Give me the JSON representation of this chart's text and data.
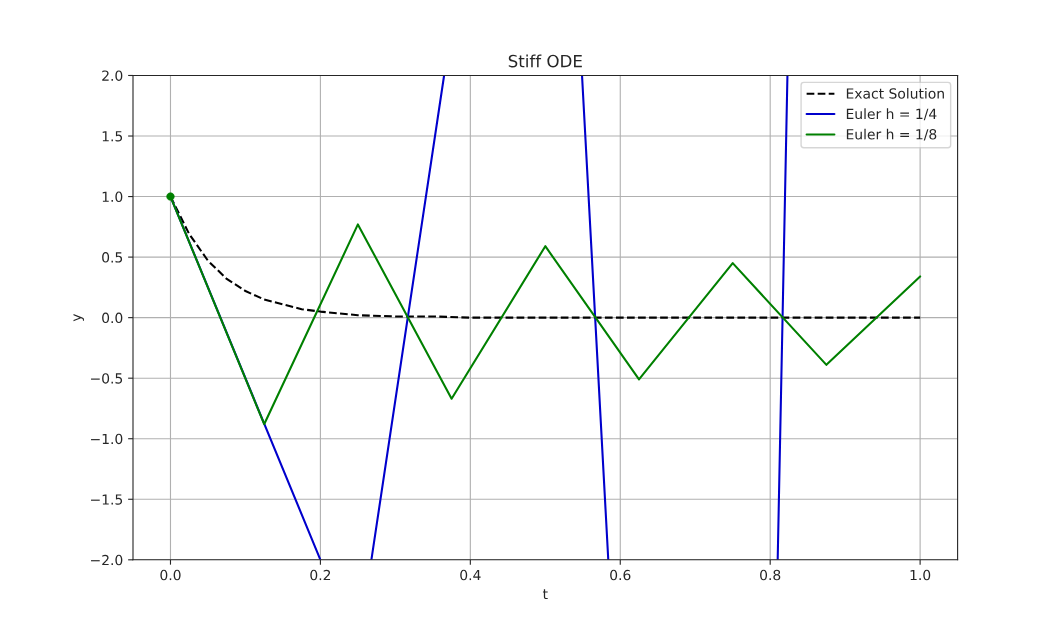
{
  "chart_data": {
    "type": "line",
    "title": "Stiff ODE",
    "xlabel": "t",
    "ylabel": "y",
    "xlim": [
      -0.05,
      1.05
    ],
    "ylim": [
      -2.0,
      2.0
    ],
    "xticks": [
      {
        "value": 0,
        "label": "0.0"
      },
      {
        "value": 0.2,
        "label": "0.2"
      },
      {
        "value": 0.4,
        "label": "0.4"
      },
      {
        "value": 0.6,
        "label": "0.6"
      },
      {
        "value": 0.8,
        "label": "0.8"
      },
      {
        "value": 1,
        "label": "1.0"
      }
    ],
    "yticks": [
      {
        "value": -2,
        "label": "−2.0"
      },
      {
        "value": -1.5,
        "label": "−1.5"
      },
      {
        "value": -1,
        "label": "−1.0"
      },
      {
        "value": -0.5,
        "label": "−0.5"
      },
      {
        "value": 0,
        "label": "0.0"
      },
      {
        "value": 0.5,
        "label": "0.5"
      },
      {
        "value": 1,
        "label": "1.0"
      },
      {
        "value": 1.5,
        "label": "1.5"
      },
      {
        "value": 2,
        "label": "2.0"
      }
    ],
    "grid": true,
    "legend": "top right",
    "series": [
      {
        "name": "Exact Solution",
        "color": "#000000",
        "line_style": "dashed",
        "marker": "none",
        "x": [
          0,
          0.025,
          0.05,
          0.075,
          0.1,
          0.125,
          0.15,
          0.175,
          0.2,
          0.25,
          0.3,
          0.35,
          0.4,
          0.5,
          0.6,
          0.7,
          0.8,
          0.9,
          1.0
        ],
        "values": [
          1.0,
          0.69,
          0.47,
          0.32,
          0.22,
          0.15,
          0.11,
          0.07,
          0.05,
          0.02,
          0.01,
          0.01,
          0.0,
          0.0,
          0.0,
          0.0,
          0.0,
          0.0,
          0.0
        ]
      },
      {
        "name": "Euler h = 1/4",
        "color": "#0000cc",
        "line_style": "solid",
        "x": [
          0,
          0.2
        ],
        "values": [
          1.0,
          -2.0
        ]
      },
      {
        "color": "#0000cc",
        "line_style": "solid",
        "x": [
          0.268,
          0.365
        ],
        "values": [
          -2.0,
          2.0
        ]
      },
      {
        "color": "#0000cc",
        "line_style": "solid",
        "x": [
          0.549,
          0.584
        ],
        "values": [
          2.0,
          -2.0
        ]
      },
      {
        "color": "#0000cc",
        "line_style": "solid",
        "x": [
          0.81,
          0.823
        ],
        "values": [
          -2.0,
          2.0
        ]
      },
      {
        "name": "Euler h = 1/8",
        "color": "#008000",
        "line_style": "solid",
        "x": [
          0,
          0.125,
          0.25,
          0.375,
          0.5,
          0.625,
          0.75,
          0.875,
          1.0
        ],
        "values": [
          1.0,
          -0.88,
          0.77,
          -0.67,
          0.59,
          -0.51,
          0.45,
          -0.39,
          0.34
        ]
      },
      {
        "type": "scatter",
        "color": "#008000",
        "marker": "circle",
        "x": [
          0
        ],
        "values": [
          1.0
        ]
      }
    ]
  }
}
